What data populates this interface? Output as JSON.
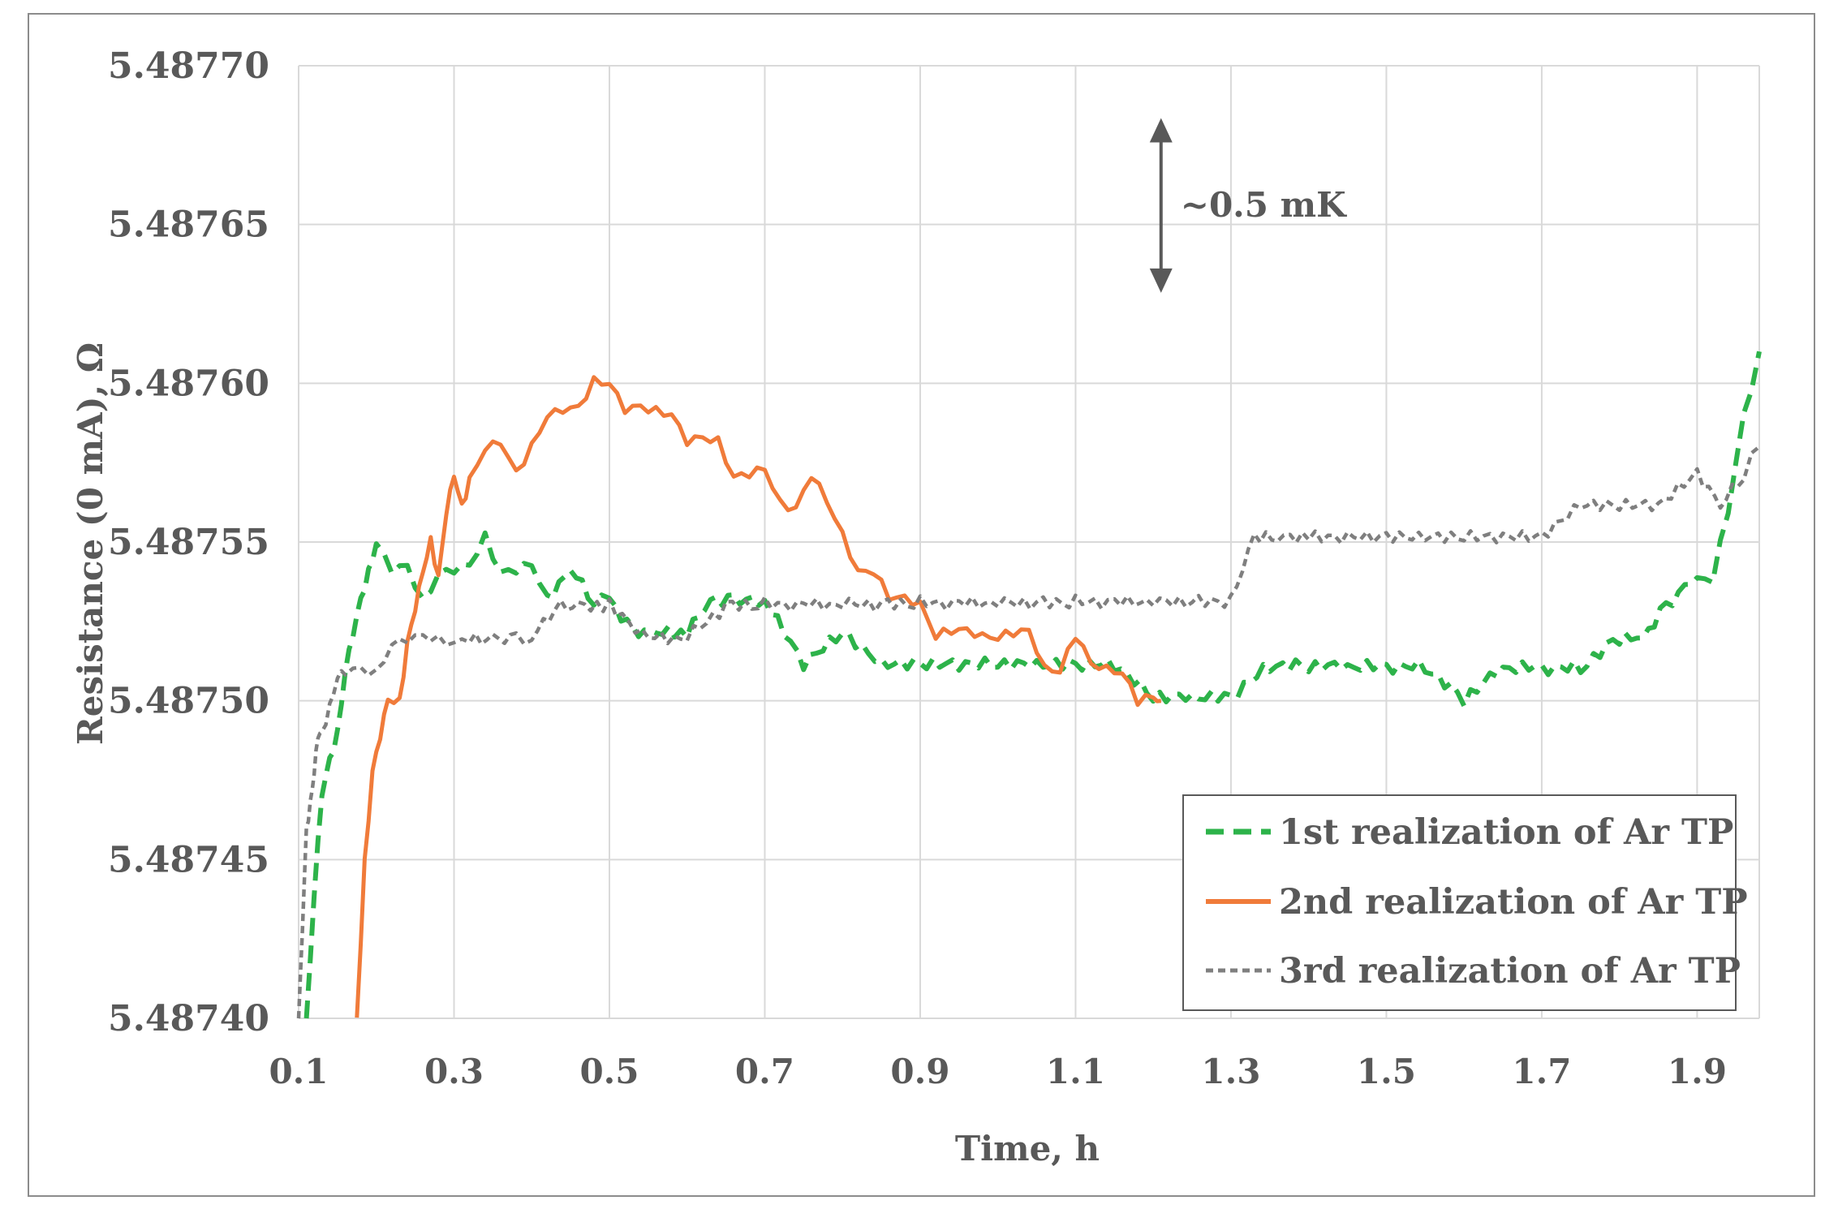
{
  "chart_data": {
    "type": "line",
    "title": "",
    "xlabel": "Time, h",
    "ylabel": "Resistance (0 mA), Ω",
    "xlim": [
      0.1,
      1.98
    ],
    "ylim": [
      5.4874,
      5.4877
    ],
    "x_ticks": [
      0.1,
      0.3,
      0.5,
      0.7,
      0.9,
      1.1,
      1.3,
      1.5,
      1.7,
      1.9
    ],
    "x_tick_labels": [
      "0.1",
      "0.3",
      "0.5",
      "0.7",
      "0.9",
      "1.1",
      "1.3",
      "1.5",
      "1.7",
      "1.9"
    ],
    "y_ticks": [
      5.4874,
      5.48745,
      5.4875,
      5.48755,
      5.4876,
      5.48765,
      5.4877
    ],
    "y_tick_labels": [
      "5.48740",
      "5.48745",
      "5.48750",
      "5.48755",
      "5.48760",
      "5.48765",
      "5.48770"
    ],
    "grid": true,
    "legend_position": "bottom-right",
    "annotation": {
      "text": "~0.5 mK",
      "x": 1.21,
      "y_from": 5.48763,
      "y_to": 5.487682
    },
    "series": [
      {
        "name": "1st realization of Ar TP",
        "color": "#2db34a",
        "style": "dashed",
        "x": [
          0.11,
          0.12,
          0.13,
          0.14,
          0.15,
          0.16,
          0.17,
          0.18,
          0.19,
          0.2,
          0.22,
          0.24,
          0.26,
          0.28,
          0.3,
          0.32,
          0.34,
          0.36,
          0.38,
          0.4,
          0.42,
          0.45,
          0.48,
          0.5,
          0.53,
          0.56,
          0.6,
          0.63,
          0.66,
          0.7,
          0.75,
          0.8,
          0.85,
          0.9,
          0.95,
          1.0,
          1.05,
          1.1,
          1.15,
          1.2,
          1.25,
          1.3,
          1.35,
          1.4,
          1.45,
          1.5,
          1.55,
          1.6,
          1.65,
          1.7,
          1.75,
          1.8,
          1.83,
          1.86,
          1.9,
          1.92,
          1.94,
          1.96,
          1.98
        ],
        "y": [
          5.4874,
          5.48744,
          5.48747,
          5.48748,
          5.48749,
          5.48751,
          5.48752,
          5.48753,
          5.48754,
          5.48755,
          5.48754,
          5.48754,
          5.48753,
          5.48754,
          5.48754,
          5.48754,
          5.48755,
          5.48754,
          5.48754,
          5.48754,
          5.48753,
          5.48754,
          5.48753,
          5.48753,
          5.48752,
          5.48752,
          5.48752,
          5.48753,
          5.48753,
          5.48753,
          5.48751,
          5.48752,
          5.48751,
          5.48751,
          5.48751,
          5.48751,
          5.48751,
          5.48751,
          5.48751,
          5.4875,
          5.4875,
          5.4875,
          5.48751,
          5.48751,
          5.48751,
          5.48751,
          5.48751,
          5.4875,
          5.48751,
          5.48751,
          5.48751,
          5.48752,
          5.48752,
          5.48753,
          5.48754,
          5.48754,
          5.48756,
          5.48759,
          5.48761
        ]
      },
      {
        "name": "2nd realization of Ar TP",
        "color": "#f07b3a",
        "style": "solid",
        "x": [
          0.175,
          0.185,
          0.195,
          0.205,
          0.215,
          0.23,
          0.24,
          0.25,
          0.26,
          0.27,
          0.28,
          0.29,
          0.3,
          0.31,
          0.32,
          0.34,
          0.36,
          0.38,
          0.4,
          0.42,
          0.44,
          0.46,
          0.48,
          0.5,
          0.52,
          0.54,
          0.56,
          0.58,
          0.6,
          0.62,
          0.64,
          0.66,
          0.68,
          0.7,
          0.72,
          0.74,
          0.76,
          0.78,
          0.8,
          0.82,
          0.84,
          0.86,
          0.88,
          0.9,
          0.92,
          0.94,
          0.96,
          0.98,
          1.0,
          1.02,
          1.04,
          1.06,
          1.08,
          1.1,
          1.12,
          1.14,
          1.16,
          1.18,
          1.2,
          1.21
        ],
        "y": [
          5.4874,
          5.48745,
          5.48748,
          5.48749,
          5.4875,
          5.4875,
          5.48752,
          5.48753,
          5.48754,
          5.48755,
          5.48754,
          5.48756,
          5.48757,
          5.48756,
          5.48757,
          5.48758,
          5.48758,
          5.48757,
          5.48758,
          5.48759,
          5.48759,
          5.48759,
          5.4876,
          5.4876,
          5.48759,
          5.48759,
          5.48759,
          5.48759,
          5.48758,
          5.48758,
          5.48758,
          5.48757,
          5.48757,
          5.48757,
          5.48756,
          5.48756,
          5.48757,
          5.48756,
          5.48755,
          5.48754,
          5.48754,
          5.48753,
          5.48753,
          5.48753,
          5.48752,
          5.48752,
          5.48752,
          5.48752,
          5.48752,
          5.48752,
          5.48752,
          5.48751,
          5.48751,
          5.48752,
          5.48751,
          5.48751,
          5.48751,
          5.4875,
          5.4875,
          5.4875
        ]
      },
      {
        "name": "3rd realization of Ar TP",
        "color": "#7f7f7f",
        "style": "dotted",
        "x": [
          0.1,
          0.105,
          0.11,
          0.115,
          0.12,
          0.125,
          0.13,
          0.14,
          0.15,
          0.16,
          0.18,
          0.2,
          0.22,
          0.24,
          0.26,
          0.28,
          0.3,
          0.32,
          0.35,
          0.38,
          0.4,
          0.43,
          0.46,
          0.5,
          0.55,
          0.6,
          0.65,
          0.7,
          0.75,
          0.8,
          0.85,
          0.9,
          0.95,
          1.0,
          1.05,
          1.1,
          1.15,
          1.2,
          1.25,
          1.3,
          1.33,
          1.36,
          1.4,
          1.45,
          1.5,
          1.55,
          1.6,
          1.65,
          1.7,
          1.75,
          1.8,
          1.85,
          1.9,
          1.93,
          1.96,
          1.98
        ],
        "y": [
          5.4874,
          5.48743,
          5.48746,
          5.48747,
          5.48748,
          5.48749,
          5.48749,
          5.4875,
          5.48751,
          5.48751,
          5.48751,
          5.48751,
          5.48752,
          5.48752,
          5.48752,
          5.48752,
          5.48752,
          5.48752,
          5.48752,
          5.48752,
          5.48752,
          5.48753,
          5.48753,
          5.48753,
          5.48752,
          5.48752,
          5.48753,
          5.48753,
          5.48753,
          5.48753,
          5.48753,
          5.48753,
          5.48753,
          5.48753,
          5.48753,
          5.48753,
          5.48753,
          5.48753,
          5.48753,
          5.48753,
          5.48755,
          5.48755,
          5.48755,
          5.48755,
          5.48755,
          5.48755,
          5.48755,
          5.48755,
          5.48755,
          5.48756,
          5.48756,
          5.48756,
          5.48757,
          5.48756,
          5.48757,
          5.48758
        ]
      }
    ]
  }
}
